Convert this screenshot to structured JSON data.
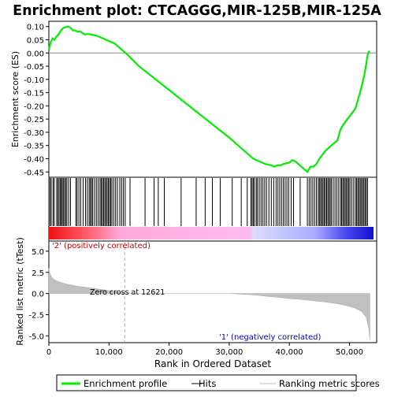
{
  "chart_data": {
    "type": "line",
    "title": "Enrichment plot: CTCAGGG,MIR-125B,MIR-125A",
    "top_panel": {
      "ylabel": "Enrichment score (ES)",
      "ylim": [
        -0.47,
        0.12
      ],
      "yticks": [
        0.1,
        0.05,
        0.0,
        -0.05,
        -0.1,
        -0.15,
        -0.2,
        -0.25,
        -0.3,
        -0.35,
        -0.4,
        -0.45
      ],
      "ytick_labels": [
        "0.10",
        "0.05",
        "0.00",
        "-0.05",
        "-0.10",
        "-0.15",
        "-0.20",
        "-0.25",
        "-0.30",
        "-0.35",
        "-0.40",
        "-0.45"
      ],
      "series": [
        {
          "name": "Enrichment profile",
          "color": "#00ee00",
          "x": [
            0,
            300,
            600,
            900,
            1200,
            1600,
            2000,
            2400,
            2800,
            3200,
            3600,
            4000,
            4400,
            4800,
            5200,
            5600,
            6000,
            6500,
            7000,
            7500,
            8000,
            8500,
            9000,
            9500,
            10000,
            10500,
            11000,
            11500,
            12000,
            12500,
            13000,
            15000,
            20000,
            25000,
            30000,
            33000,
            34000,
            35000,
            36000,
            37000,
            37500,
            38000,
            38500,
            39000,
            40000,
            40500,
            41000,
            42000,
            42500,
            43000,
            43500,
            44000,
            44500,
            45000,
            46000,
            47000,
            48000,
            48500,
            49000,
            50000,
            51000,
            51500,
            52000,
            52500,
            52800,
            53000,
            53200,
            53400
          ],
          "y": [
            0.01,
            0.04,
            0.055,
            0.05,
            0.06,
            0.07,
            0.085,
            0.095,
            0.098,
            0.1,
            0.095,
            0.085,
            0.085,
            0.08,
            0.082,
            0.075,
            0.07,
            0.072,
            0.07,
            0.068,
            0.065,
            0.06,
            0.055,
            0.05,
            0.045,
            0.04,
            0.035,
            0.025,
            0.015,
            0.005,
            -0.005,
            -0.05,
            -0.14,
            -0.23,
            -0.32,
            -0.38,
            -0.4,
            -0.41,
            -0.42,
            -0.425,
            -0.43,
            -0.425,
            -0.425,
            -0.42,
            -0.415,
            -0.405,
            -0.41,
            -0.43,
            -0.44,
            -0.45,
            -0.43,
            -0.43,
            -0.42,
            -0.4,
            -0.37,
            -0.35,
            -0.33,
            -0.29,
            -0.27,
            -0.24,
            -0.21,
            -0.17,
            -0.13,
            -0.08,
            -0.04,
            -0.01,
            0.005,
            0.005
          ]
        }
      ]
    },
    "bottom_panel": {
      "ylabel": "Ranked list metric (tTest)",
      "xlabel": "Rank in Ordered Dataset",
      "ylim": [
        -5.8,
        6.2
      ],
      "yticks": [
        5.0,
        2.5,
        0.0,
        -2.5,
        -5.0
      ],
      "ytick_labels": [
        "5.0",
        "2.5",
        "0.0",
        "-2.5",
        "-5.0"
      ],
      "xlim": [
        0,
        54000
      ],
      "xticks": [
        0,
        10000,
        20000,
        30000,
        40000,
        50000
      ],
      "xtick_labels": [
        "0",
        "10,000",
        "20,000",
        "30,000",
        "40,000",
        "50,000"
      ],
      "metric_x": [
        0,
        200,
        600,
        1200,
        2000,
        3000,
        4500,
        6000,
        8000,
        10000,
        12621,
        20000,
        30000,
        34000,
        36000,
        38000,
        40000,
        42000,
        44000,
        46000,
        48000,
        50000,
        51000,
        52000,
        52800,
        53200,
        53400
      ],
      "metric_y": [
        3.0,
        2.3,
        1.8,
        1.5,
        1.3,
        1.1,
        0.9,
        0.75,
        0.55,
        0.35,
        0.0,
        0.0,
        0.0,
        -0.15,
        -0.3,
        -0.45,
        -0.6,
        -0.7,
        -0.85,
        -1.0,
        -1.2,
        -1.5,
        -1.75,
        -2.1,
        -2.8,
        -4.0,
        -5.5
      ],
      "annotations": [
        {
          "text": "'2' (positively correlated)",
          "color": "#cc0000"
        },
        {
          "text": "Zero cross at 12621",
          "color": "#000000"
        },
        {
          "text": "'1' (negatively correlated)",
          "color": "#0000cc"
        }
      ],
      "zero_cross": 12621
    },
    "hits_x": [
      200,
      400,
      700,
      900,
      1300,
      1500,
      1700,
      1900,
      2100,
      2200,
      2400,
      2600,
      2800,
      3000,
      3300,
      3600,
      4500,
      4700,
      5000,
      5300,
      5700,
      6100,
      6400,
      6700,
      6900,
      7100,
      7300,
      7600,
      7900,
      8200,
      8500,
      8700,
      8900,
      9100,
      9300,
      9500,
      9700,
      9900,
      10100,
      10300,
      10500,
      10800,
      11100,
      11400,
      11800,
      12100,
      12400,
      12700,
      13500,
      16000,
      17500,
      18200,
      19200,
      22000,
      24500,
      26000,
      27200,
      28500,
      30500,
      32000,
      33000,
      33600,
      33800,
      34000,
      34200,
      34500,
      34700,
      35000,
      35300,
      35600,
      35900,
      36200,
      36600,
      37000,
      37400,
      37800,
      38100,
      38400,
      38700,
      39000,
      39300,
      39600,
      39900,
      40300,
      40700,
      41800,
      43000,
      43300,
      43600,
      43900,
      44200,
      44500,
      44800,
      45000,
      45200,
      45400,
      45600,
      45800,
      46000,
      46200,
      46400,
      46600,
      46800,
      47000,
      47300,
      47600,
      47900,
      48200,
      48500,
      48700,
      48900,
      49100,
      49300,
      49500,
      49700,
      49900,
      50100,
      50400,
      50700,
      51000,
      51200,
      51400,
      51600,
      51800,
      52000,
      52200,
      52400,
      52600,
      52800,
      53000
    ],
    "legend": [
      {
        "label": "Enrichment profile",
        "color": "#00ee00"
      },
      {
        "label": "Hits",
        "color": "#000000"
      },
      {
        "label": "Ranking metric scores",
        "color": "#c0c0c0"
      }
    ]
  }
}
